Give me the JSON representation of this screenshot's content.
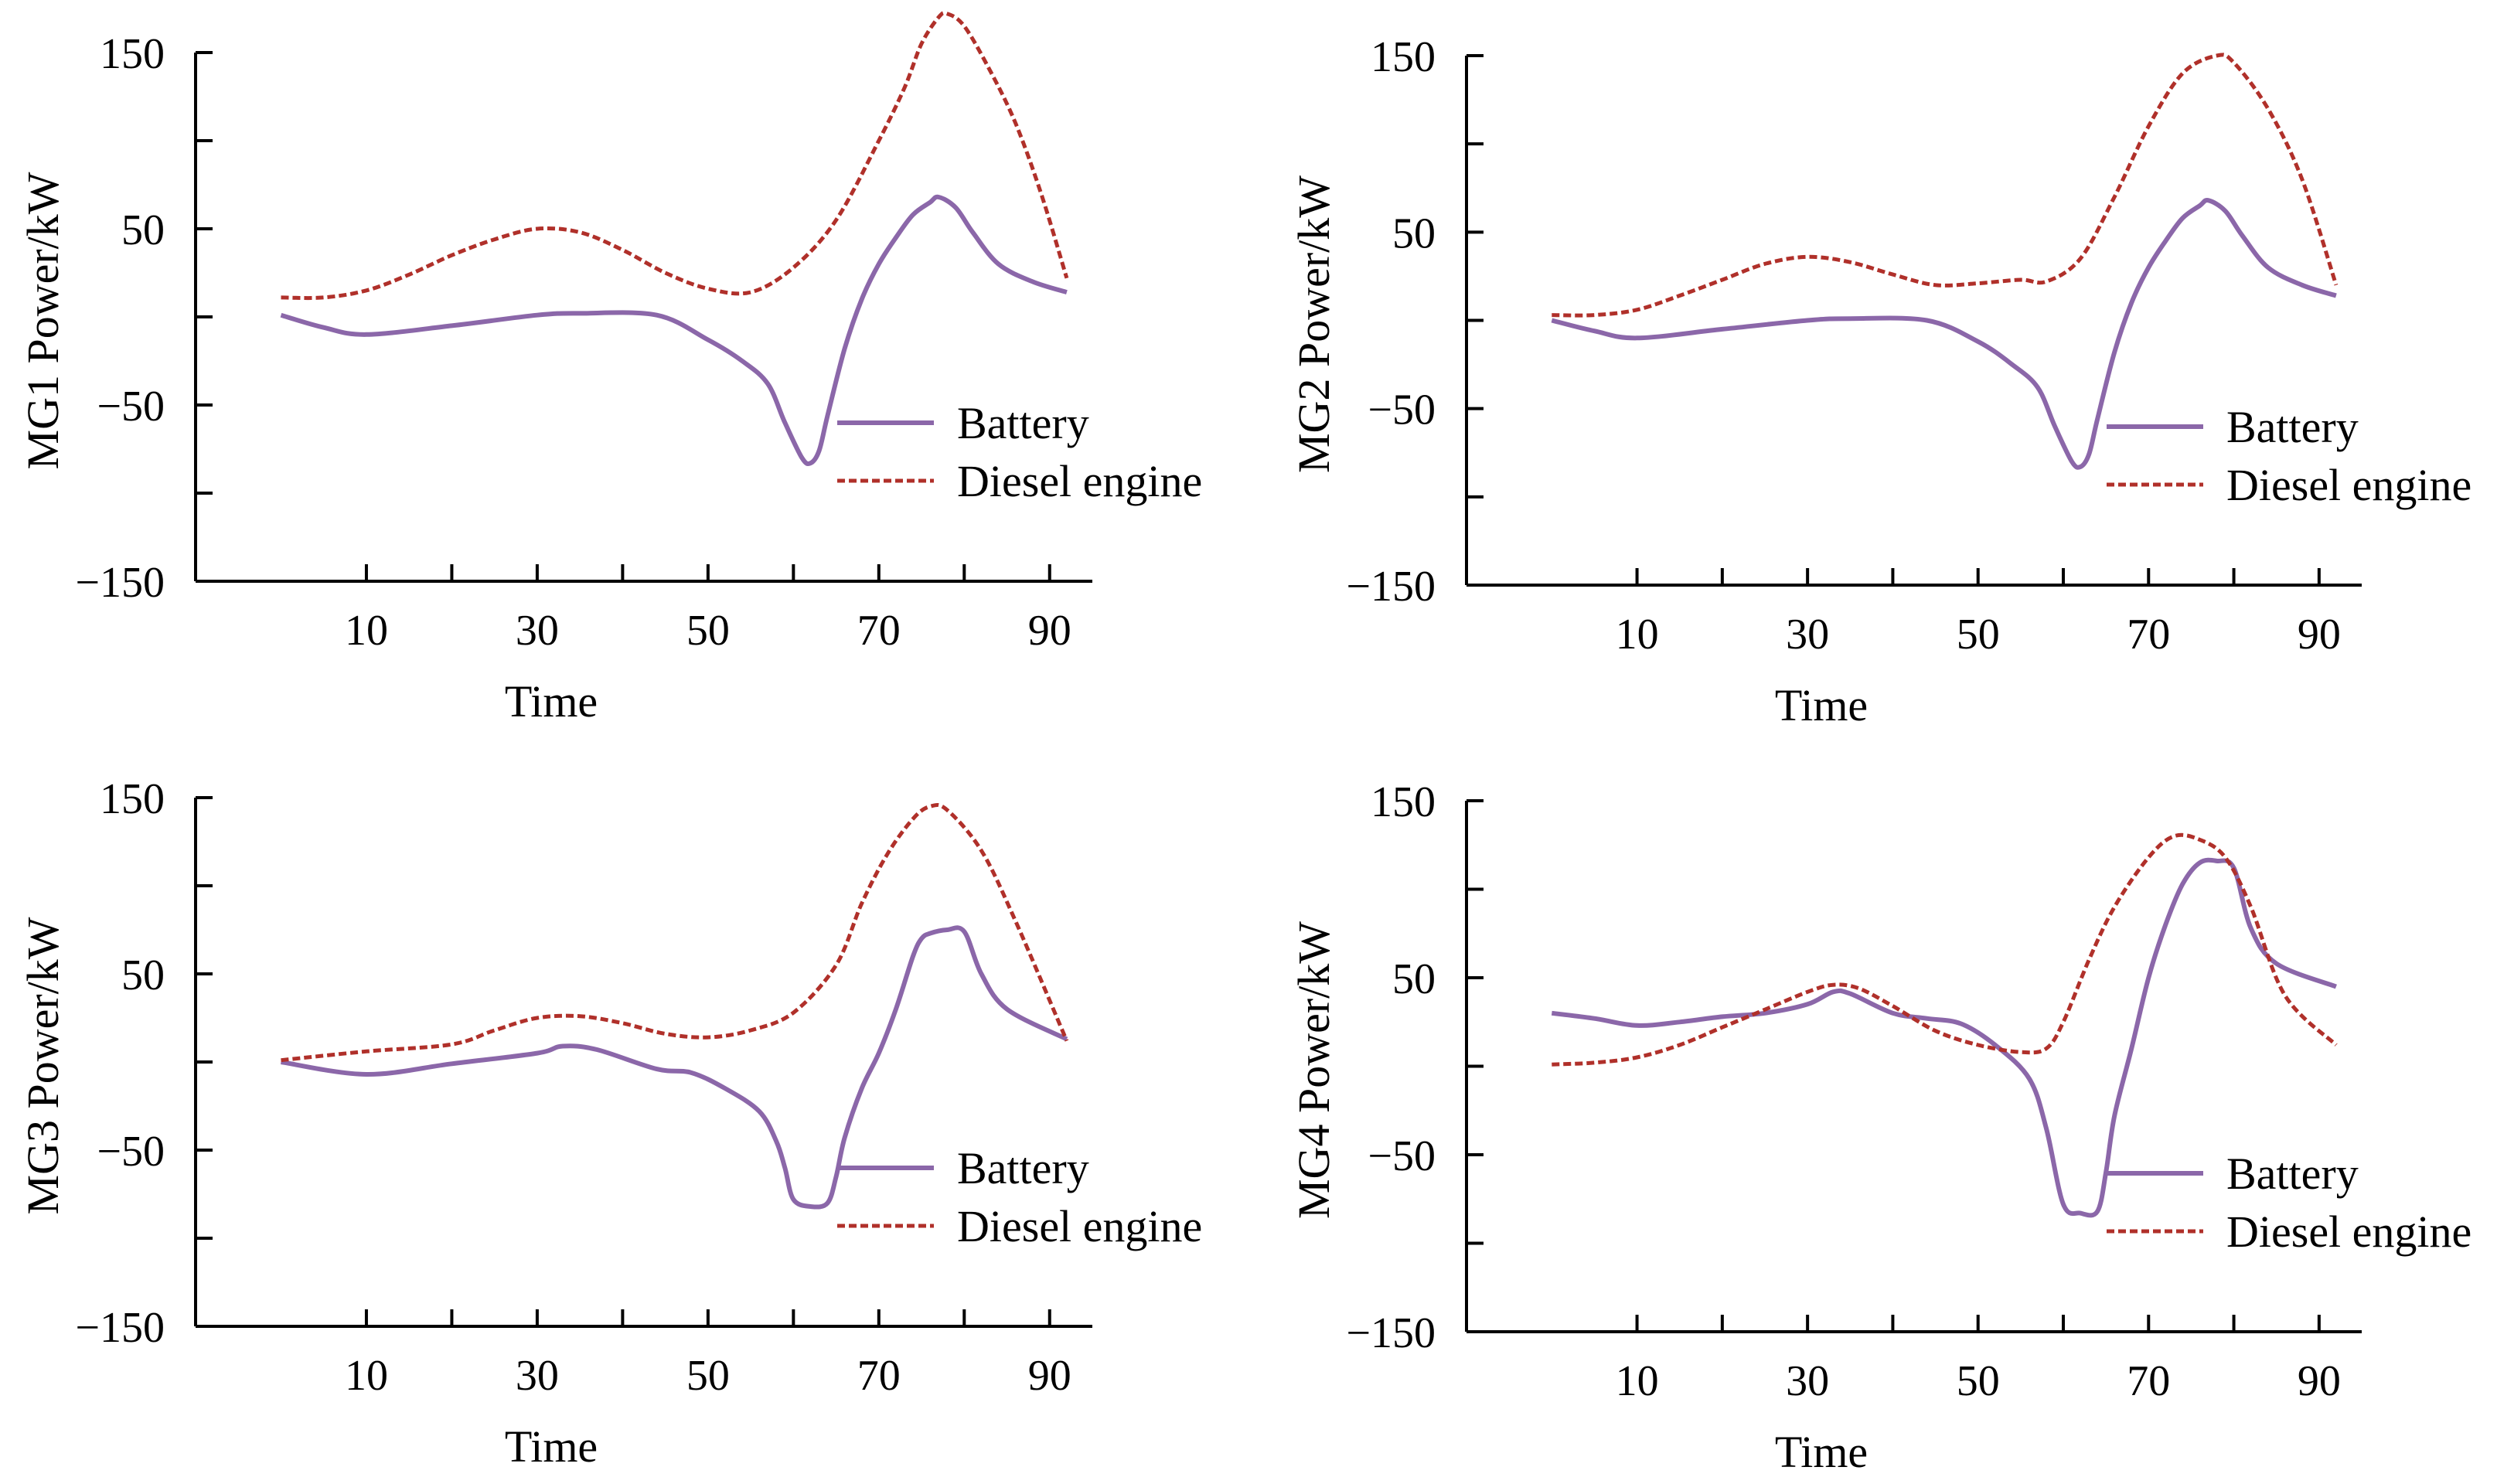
{
  "colors": {
    "battery": "#8b67a9",
    "diesel": "#b0302a",
    "axis": "#000000"
  },
  "chart_data": [
    {
      "type": "line",
      "ylabel": "MG1 Power/kW",
      "xlabel": "Time",
      "xlim": [
        -10,
        95
      ],
      "ylim": [
        -150,
        150
      ],
      "xticks": [
        10,
        30,
        50,
        70,
        90
      ],
      "yticks": [
        -150,
        -50,
        50,
        150
      ],
      "legend_position": "lower-right",
      "series": [
        {
          "name": "Battery",
          "style": "solid",
          "color": "#8b67a9",
          "x": [
            0,
            5,
            10,
            20,
            30,
            35,
            44,
            50,
            54,
            57,
            59,
            61,
            62,
            63,
            64,
            66,
            68,
            70,
            72,
            74,
            76,
            77,
            79,
            81,
            84,
            88,
            92
          ],
          "y": [
            1,
            -6,
            -10,
            -5,
            1,
            2,
            1,
            -13,
            -25,
            -38,
            -60,
            -80,
            -83,
            -76,
            -56,
            -18,
            10,
            30,
            45,
            58,
            65,
            68,
            62,
            48,
            30,
            20,
            14
          ]
        },
        {
          "name": "Diesel engine",
          "style": "dashed",
          "color": "#b0302a",
          "x": [
            0,
            5,
            10,
            15,
            20,
            25,
            30,
            35,
            40,
            45,
            50,
            55,
            60,
            65,
            70,
            73,
            75,
            77,
            78,
            80,
            83,
            86,
            89,
            92
          ],
          "y": [
            11,
            11,
            15,
            24,
            35,
            44,
            50,
            48,
            38,
            25,
            16,
            14,
            28,
            55,
            100,
            130,
            155,
            170,
            172,
            165,
            140,
            110,
            70,
            22
          ]
        }
      ]
    },
    {
      "type": "line",
      "ylabel": "MG2 Power/kW",
      "xlabel": "Time",
      "xlim": [
        -10,
        95
      ],
      "ylim": [
        -150,
        150
      ],
      "xticks": [
        10,
        30,
        50,
        70,
        90
      ],
      "yticks": [
        -150,
        -50,
        50,
        150
      ],
      "legend_position": "lower-right",
      "series": [
        {
          "name": "Battery",
          "style": "solid",
          "color": "#8b67a9",
          "x": [
            0,
            5,
            10,
            20,
            30,
            35,
            44,
            50,
            54,
            57,
            59,
            61,
            62,
            63,
            64,
            66,
            68,
            70,
            72,
            74,
            76,
            77,
            79,
            81,
            84,
            88,
            92
          ],
          "y": [
            0,
            -6,
            -10,
            -5,
            0,
            1,
            0,
            -12,
            -25,
            -38,
            -60,
            -80,
            -83,
            -76,
            -56,
            -18,
            10,
            30,
            45,
            58,
            65,
            68,
            62,
            48,
            30,
            20,
            14
          ]
        },
        {
          "name": "Diesel engine",
          "style": "dashed",
          "color": "#b0302a",
          "x": [
            0,
            5,
            10,
            15,
            20,
            25,
            30,
            35,
            40,
            45,
            50,
            55,
            58,
            62,
            66,
            70,
            74,
            78,
            80,
            84,
            88,
            92
          ],
          "y": [
            3,
            3,
            6,
            14,
            23,
            32,
            36,
            33,
            26,
            20,
            21,
            23,
            22,
            35,
            70,
            110,
            140,
            150,
            146,
            120,
            80,
            20
          ]
        }
      ]
    },
    {
      "type": "line",
      "ylabel": "MG3 Power/kW",
      "xlabel": "Time",
      "xlim": [
        -10,
        95
      ],
      "ylim": [
        -150,
        150
      ],
      "xticks": [
        10,
        30,
        50,
        70,
        90
      ],
      "yticks": [
        -150,
        -50,
        50,
        150
      ],
      "legend_position": "lower-right",
      "series": [
        {
          "name": "Battery",
          "style": "solid",
          "color": "#8b67a9",
          "x": [
            0,
            10,
            20,
            30,
            33,
            37,
            44,
            48,
            52,
            56,
            58,
            59,
            60,
            62,
            64,
            65,
            66,
            68,
            70,
            72,
            74,
            75,
            76,
            78,
            80,
            82,
            85,
            92
          ],
          "y": [
            0,
            -7,
            -1,
            5,
            9,
            7,
            -4,
            -6,
            -15,
            -28,
            -45,
            -60,
            -78,
            -82,
            -80,
            -65,
            -43,
            -15,
            5,
            30,
            60,
            70,
            73,
            75,
            74,
            50,
            30,
            13
          ]
        },
        {
          "name": "Diesel engine",
          "style": "dashed",
          "color": "#b0302a",
          "x": [
            0,
            10,
            20,
            25,
            30,
            35,
            40,
            45,
            50,
            55,
            60,
            65,
            68,
            71,
            74,
            76,
            78,
            82,
            86,
            92
          ],
          "y": [
            1,
            6,
            10,
            18,
            25,
            26,
            22,
            16,
            14,
            18,
            28,
            55,
            90,
            118,
            138,
            145,
            143,
            120,
            80,
            12
          ]
        }
      ]
    },
    {
      "type": "line",
      "ylabel": "MG4 Power/kW",
      "xlabel": "Time",
      "xlim": [
        -10,
        95
      ],
      "ylim": [
        -150,
        150
      ],
      "xticks": [
        10,
        30,
        50,
        70,
        90
      ],
      "yticks": [
        -150,
        -50,
        50,
        150
      ],
      "legend_position": "lower-right",
      "series": [
        {
          "name": "Battery",
          "style": "solid",
          "color": "#8b67a9",
          "x": [
            0,
            5,
            10,
            15,
            20,
            25,
            30,
            33,
            35,
            40,
            44,
            48,
            52,
            56,
            58,
            60,
            62,
            64,
            65,
            66,
            68,
            70,
            72,
            74,
            76,
            78,
            80,
            82,
            85,
            92
          ],
          "y": [
            30,
            27,
            23,
            25,
            28,
            30,
            35,
            42,
            41,
            30,
            27,
            24,
            12,
            -7,
            -35,
            -78,
            -83,
            -82,
            -60,
            -28,
            10,
            50,
            80,
            103,
            115,
            116,
            112,
            78,
            58,
            45
          ]
        },
        {
          "name": "Diesel engine",
          "style": "dashed",
          "color": "#b0302a",
          "x": [
            0,
            5,
            10,
            15,
            20,
            25,
            30,
            33,
            36,
            40,
            45,
            50,
            55,
            58,
            60,
            63,
            66,
            70,
            73,
            76,
            79,
            82,
            86,
            92
          ],
          "y": [
            1,
            2,
            5,
            12,
            22,
            32,
            42,
            46,
            44,
            34,
            20,
            12,
            8,
            10,
            25,
            60,
            90,
            118,
            130,
            128,
            118,
            90,
            40,
            12
          ]
        }
      ]
    }
  ]
}
